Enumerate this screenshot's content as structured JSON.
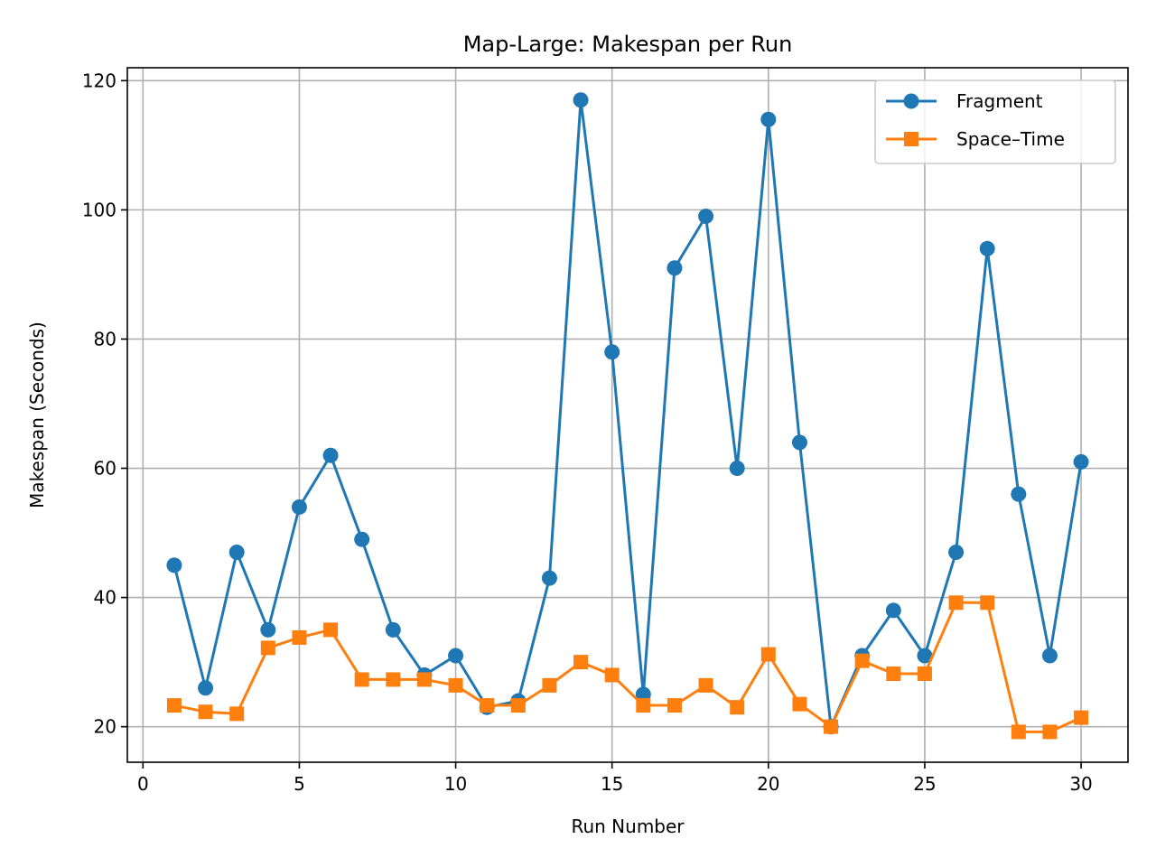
{
  "chart_data": {
    "type": "line",
    "title": "Map-Large: Makespan per Run",
    "xlabel": "Run Number",
    "ylabel": "Makespan (Seconds)",
    "xlim": [
      -0.5,
      31.5
    ],
    "ylim": [
      14.5,
      122
    ],
    "xticks": [
      0,
      5,
      10,
      15,
      20,
      25,
      30
    ],
    "yticks": [
      20,
      40,
      60,
      80,
      100,
      120
    ],
    "grid": true,
    "legend_position": "top-right",
    "x": [
      1,
      2,
      3,
      4,
      5,
      6,
      7,
      8,
      9,
      10,
      11,
      12,
      13,
      14,
      15,
      16,
      17,
      18,
      19,
      20,
      21,
      22,
      23,
      24,
      25,
      26,
      27,
      28,
      29,
      30
    ],
    "series": [
      {
        "name": "Fragment",
        "color": "#1f77b4",
        "marker": "circle",
        "values": [
          45,
          26,
          47,
          35,
          54,
          62,
          49,
          35,
          28,
          31,
          23,
          24,
          43,
          117,
          78,
          25,
          91,
          99,
          60,
          114,
          64,
          20,
          31,
          38,
          31,
          47,
          94,
          56,
          31,
          61
        ]
      },
      {
        "name": "Space–Time",
        "color": "#ff7f0e",
        "marker": "square",
        "values": [
          23.3,
          22.3,
          22,
          32.2,
          33.8,
          35,
          27.3,
          27.3,
          27.3,
          26.4,
          23.3,
          23.3,
          26.4,
          30,
          28,
          23.3,
          23.3,
          26.4,
          23,
          31.2,
          23.5,
          20,
          30.2,
          28.2,
          28.2,
          39.2,
          39.2,
          19.2,
          19.2,
          21.4
        ]
      }
    ]
  }
}
